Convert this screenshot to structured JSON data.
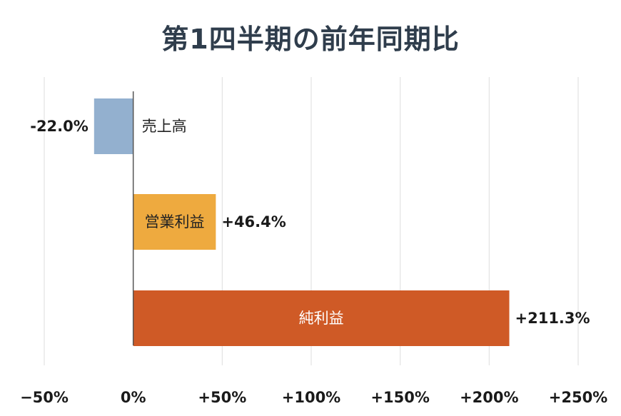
{
  "chart_data": {
    "type": "bar",
    "orientation": "horizontal",
    "title": "第1四半期の前年同期比",
    "xlabel": "",
    "ylabel": "",
    "xlim": [
      -50,
      250
    ],
    "x_ticks": [
      -50,
      0,
      50,
      100,
      150,
      200,
      250
    ],
    "x_tick_labels": [
      "−50%",
      "0%",
      "+50%",
      "+100%",
      "+150%",
      "+200%",
      "+250%"
    ],
    "grid": "vertical",
    "legend": "none",
    "categories": [
      "売上高",
      "営業利益",
      "純利益"
    ],
    "values": [
      -22.0,
      46.4,
      211.3
    ],
    "value_labels": [
      "-22.0%",
      "+46.4%",
      "+211.3%"
    ],
    "colors": [
      "#93b0cf",
      "#eeaa3f",
      "#cf5a26"
    ],
    "category_label_colors": [
      "#222222",
      "#222222",
      "#ffffff"
    ]
  }
}
